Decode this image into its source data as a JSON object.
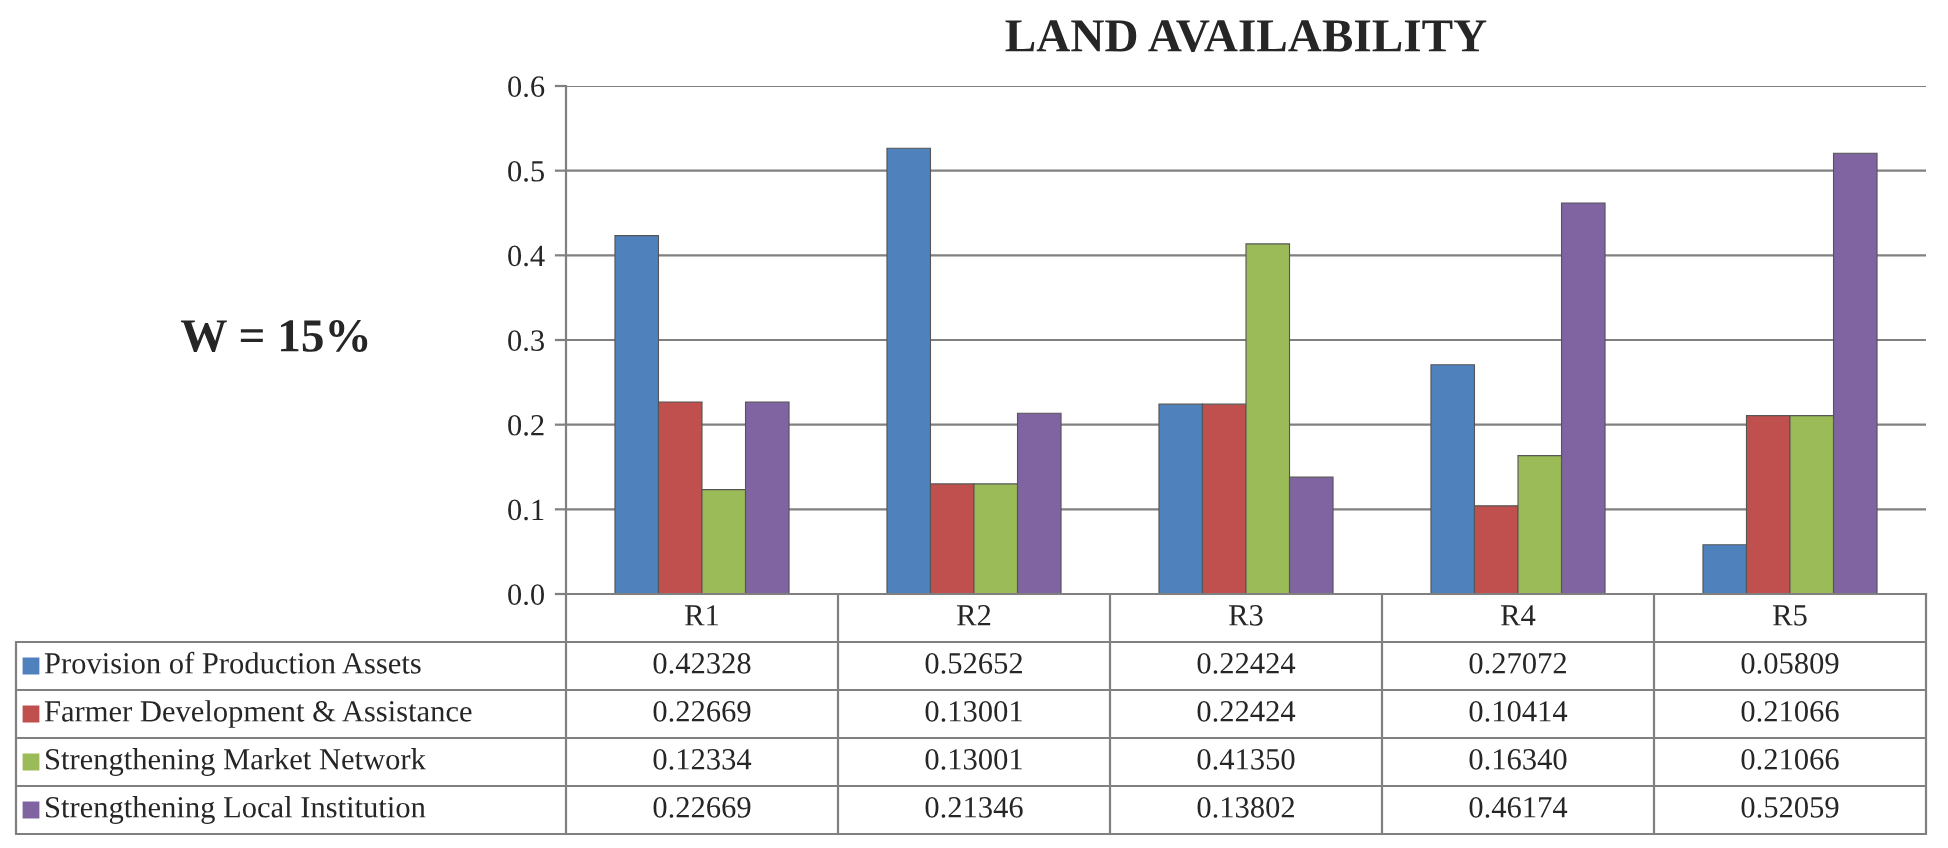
{
  "chart_data": {
    "type": "bar",
    "title": "LAND AVAILABILITY",
    "annotations": [
      "W = 15%"
    ],
    "categories": [
      "R1",
      "R2",
      "R3",
      "R4",
      "R5"
    ],
    "series": [
      {
        "name": "Provision of Production Assets",
        "color": "#4f81bd",
        "values": [
          0.42328,
          0.52652,
          0.22424,
          0.27072,
          0.05809
        ],
        "value_labels": [
          "0.42328",
          "0.52652",
          "0.22424",
          "0.27072",
          "0.05809"
        ]
      },
      {
        "name": "Farmer Development & Assistance",
        "color": "#c0504d",
        "values": [
          0.22669,
          0.13001,
          0.22424,
          0.10414,
          0.21066
        ],
        "value_labels": [
          "0.22669",
          "0.13001",
          "0.22424",
          "0.10414",
          "0.21066"
        ]
      },
      {
        "name": "Strengthening Market Network",
        "color": "#9bbb59",
        "values": [
          0.12334,
          0.13001,
          0.4135,
          0.1634,
          0.21066
        ],
        "value_labels": [
          "0.12334",
          "0.13001",
          "0.41350",
          "0.16340",
          "0.21066"
        ]
      },
      {
        "name": "Strengthening Local Institution",
        "color": "#8064a2",
        "values": [
          0.22669,
          0.21346,
          0.13802,
          0.46174,
          0.52059
        ],
        "value_labels": [
          "0.22669",
          "0.21346",
          "0.13802",
          "0.46174",
          "0.52059"
        ]
      }
    ],
    "ylim": [
      0,
      0.6
    ],
    "yticks": [
      {
        "value": 0,
        "label": "0.0"
      },
      {
        "value": 0.1,
        "label": "0.1"
      },
      {
        "value": 0.2,
        "label": "0.2"
      },
      {
        "value": 0.3,
        "label": "0.3"
      },
      {
        "value": 0.4,
        "label": "0.4"
      },
      {
        "value": 0.5,
        "label": "0.5"
      },
      {
        "value": 0.6,
        "label": "0.6"
      }
    ],
    "grid": "y",
    "legend": "bottom"
  }
}
